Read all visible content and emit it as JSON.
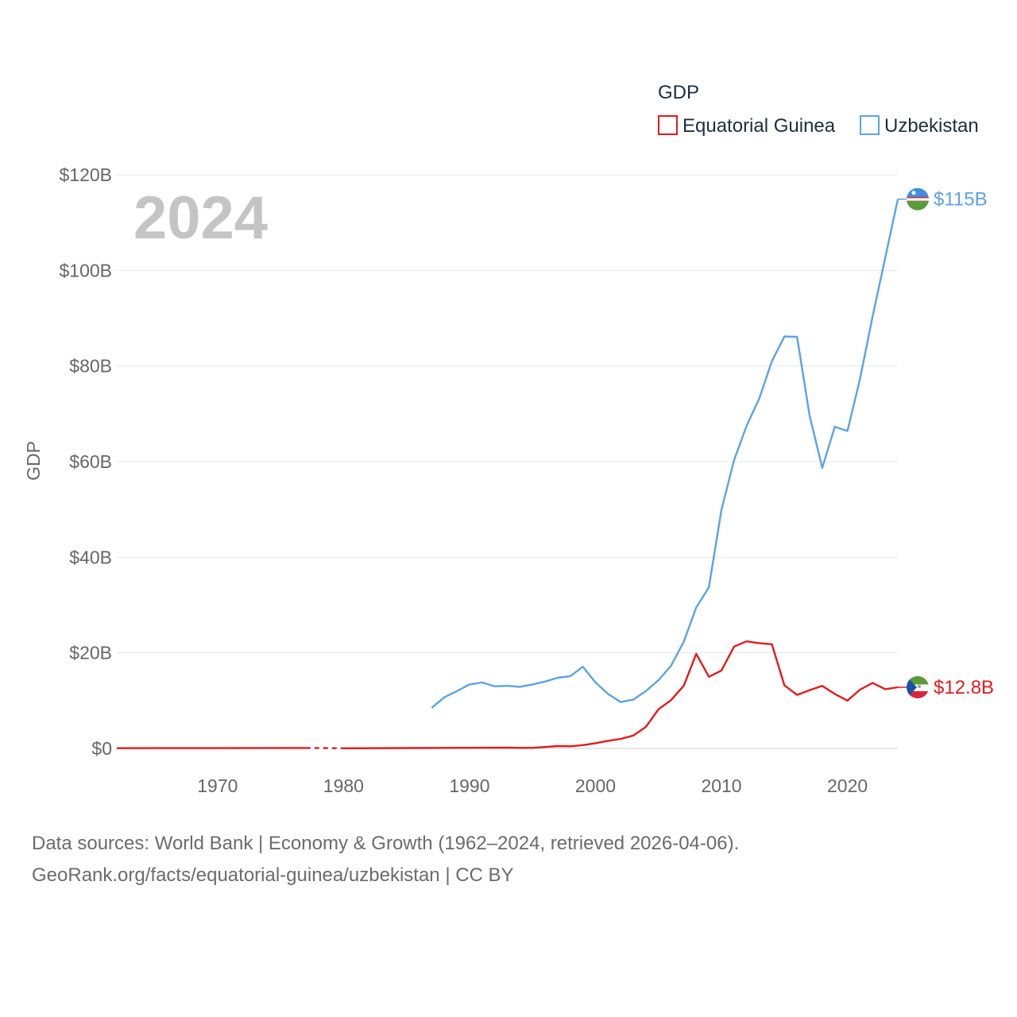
{
  "chart_data": {
    "type": "line",
    "big_year": "2024",
    "ylabel": "GDP",
    "legend_title": "GDP",
    "legend_position": "top-right",
    "xlim": [
      1962,
      2024
    ],
    "ylim": [
      0,
      120
    ],
    "x_ticks": [
      1970,
      1980,
      1990,
      2000,
      2010,
      2020
    ],
    "y_ticks": [
      {
        "value": 0,
        "label": "$0"
      },
      {
        "value": 20,
        "label": "$20B"
      },
      {
        "value": 40,
        "label": "$40B"
      },
      {
        "value": 60,
        "label": "$60B"
      },
      {
        "value": 80,
        "label": "$80B"
      },
      {
        "value": 100,
        "label": "$100B"
      },
      {
        "value": 120,
        "label": "$120B"
      }
    ],
    "series": [
      {
        "name": "Equatorial Guinea",
        "color": "#e31a1c",
        "end_label": "$12.8B",
        "flag": "equatorial-guinea-flag-icon",
        "gap": [
          1977,
          1980
        ],
        "points": [
          [
            1962,
            0.05
          ],
          [
            1965,
            0.07
          ],
          [
            1970,
            0.07
          ],
          [
            1975,
            0.1
          ],
          [
            1977,
            0.1
          ],
          [
            1980,
            0.04
          ],
          [
            1985,
            0.08
          ],
          [
            1990,
            0.13
          ],
          [
            1993,
            0.16
          ],
          [
            1994,
            0.12
          ],
          [
            1995,
            0.14
          ],
          [
            1996,
            0.3
          ],
          [
            1997,
            0.5
          ],
          [
            1998,
            0.45
          ],
          [
            1999,
            0.7
          ],
          [
            2000,
            1.1
          ],
          [
            2001,
            1.6
          ],
          [
            2002,
            2.0
          ],
          [
            2003,
            2.7
          ],
          [
            2004,
            4.5
          ],
          [
            2005,
            8.2
          ],
          [
            2006,
            10.1
          ],
          [
            2007,
            13.1
          ],
          [
            2008,
            19.8
          ],
          [
            2009,
            15.0
          ],
          [
            2010,
            16.3
          ],
          [
            2011,
            21.3
          ],
          [
            2012,
            22.4
          ],
          [
            2013,
            22.0
          ],
          [
            2014,
            21.8
          ],
          [
            2015,
            13.2
          ],
          [
            2016,
            11.2
          ],
          [
            2017,
            12.2
          ],
          [
            2018,
            13.1
          ],
          [
            2019,
            11.4
          ],
          [
            2020,
            10.0
          ],
          [
            2021,
            12.3
          ],
          [
            2022,
            13.7
          ],
          [
            2023,
            12.4
          ],
          [
            2024,
            12.8
          ]
        ]
      },
      {
        "name": "Uzbekistan",
        "color": "#5ba3e6",
        "end_label": "$115B",
        "flag": "uzbekistan-flag-icon",
        "points": [
          [
            1987,
            8.5
          ],
          [
            1988,
            10.7
          ],
          [
            1989,
            12.0
          ],
          [
            1990,
            13.4
          ],
          [
            1991,
            13.8
          ],
          [
            1992,
            13.0
          ],
          [
            1993,
            13.1
          ],
          [
            1994,
            12.9
          ],
          [
            1995,
            13.4
          ],
          [
            1996,
            14.0
          ],
          [
            1997,
            14.8
          ],
          [
            1998,
            15.1
          ],
          [
            1999,
            17.1
          ],
          [
            2000,
            13.8
          ],
          [
            2001,
            11.4
          ],
          [
            2002,
            9.7
          ],
          [
            2003,
            10.2
          ],
          [
            2004,
            12.0
          ],
          [
            2005,
            14.3
          ],
          [
            2006,
            17.3
          ],
          [
            2007,
            22.3
          ],
          [
            2008,
            29.5
          ],
          [
            2009,
            33.7
          ],
          [
            2010,
            49.9
          ],
          [
            2011,
            60.3
          ],
          [
            2012,
            67.5
          ],
          [
            2013,
            73.2
          ],
          [
            2014,
            81.0
          ],
          [
            2015,
            86.2
          ],
          [
            2016,
            86.1
          ],
          [
            2017,
            69.6
          ],
          [
            2018,
            58.7
          ],
          [
            2019,
            67.3
          ],
          [
            2020,
            66.4
          ],
          [
            2021,
            77.3
          ],
          [
            2022,
            90.4
          ],
          [
            2023,
            102.6
          ],
          [
            2024,
            114.9
          ]
        ]
      }
    ]
  },
  "footer": {
    "line1": "Data sources: World Bank | Economy & Growth (1962–2024, retrieved 2026-04-06).",
    "line2": "GeoRank.org/facts/equatorial-guinea/uzbekistan | CC BY"
  }
}
